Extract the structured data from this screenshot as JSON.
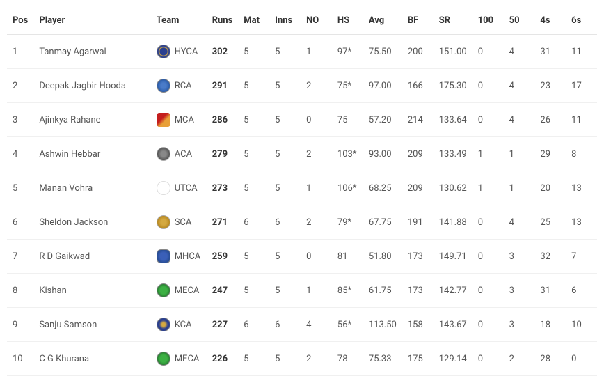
{
  "columns": [
    "Pos",
    "Player",
    "Team",
    "Runs",
    "Mat",
    "Inns",
    "NO",
    "HS",
    "Avg",
    "BF",
    "SR",
    "100",
    "50",
    "4s",
    "6s"
  ],
  "rows": [
    {
      "pos": "1",
      "player": "Tanmay Agarwal",
      "team": "HYCA",
      "logo": "hyca",
      "runs": "302",
      "mat": "5",
      "inns": "5",
      "no": "1",
      "hs": "97*",
      "avg": "75.50",
      "bf": "200",
      "sr": "151.00",
      "c100": "0",
      "c50": "4",
      "c4s": "31",
      "c6s": "11"
    },
    {
      "pos": "2",
      "player": "Deepak Jagbir Hooda",
      "team": "RCA",
      "logo": "rca",
      "runs": "291",
      "mat": "5",
      "inns": "5",
      "no": "2",
      "hs": "75*",
      "avg": "97.00",
      "bf": "166",
      "sr": "175.30",
      "c100": "0",
      "c50": "4",
      "c4s": "23",
      "c6s": "17"
    },
    {
      "pos": "3",
      "player": "Ajinkya Rahane",
      "team": "MCA",
      "logo": "mca",
      "runs": "286",
      "mat": "5",
      "inns": "5",
      "no": "0",
      "hs": "75",
      "avg": "57.20",
      "bf": "214",
      "sr": "133.64",
      "c100": "0",
      "c50": "4",
      "c4s": "26",
      "c6s": "11"
    },
    {
      "pos": "4",
      "player": "Ashwin Hebbar",
      "team": "ACA",
      "logo": "aca",
      "runs": "279",
      "mat": "5",
      "inns": "5",
      "no": "2",
      "hs": "103*",
      "avg": "93.00",
      "bf": "209",
      "sr": "133.49",
      "c100": "1",
      "c50": "1",
      "c4s": "29",
      "c6s": "8"
    },
    {
      "pos": "5",
      "player": "Manan Vohra",
      "team": "UTCA",
      "logo": "utca",
      "runs": "273",
      "mat": "5",
      "inns": "5",
      "no": "1",
      "hs": "106*",
      "avg": "68.25",
      "bf": "209",
      "sr": "130.62",
      "c100": "1",
      "c50": "1",
      "c4s": "20",
      "c6s": "13"
    },
    {
      "pos": "6",
      "player": "Sheldon Jackson",
      "team": "SCA",
      "logo": "sca",
      "runs": "271",
      "mat": "6",
      "inns": "6",
      "no": "2",
      "hs": "79*",
      "avg": "67.75",
      "bf": "191",
      "sr": "141.88",
      "c100": "0",
      "c50": "4",
      "c4s": "25",
      "c6s": "13"
    },
    {
      "pos": "7",
      "player": "R D Gaikwad",
      "team": "MHCA",
      "logo": "mhca",
      "runs": "259",
      "mat": "5",
      "inns": "5",
      "no": "0",
      "hs": "81",
      "avg": "51.80",
      "bf": "173",
      "sr": "149.71",
      "c100": "0",
      "c50": "3",
      "c4s": "32",
      "c6s": "7"
    },
    {
      "pos": "8",
      "player": "Kishan",
      "team": "MECA",
      "logo": "meca",
      "runs": "247",
      "mat": "5",
      "inns": "5",
      "no": "1",
      "hs": "85*",
      "avg": "61.75",
      "bf": "173",
      "sr": "142.77",
      "c100": "0",
      "c50": "3",
      "c4s": "31",
      "c6s": "6"
    },
    {
      "pos": "9",
      "player": "Sanju Samson",
      "team": "KCA",
      "logo": "kca",
      "runs": "227",
      "mat": "6",
      "inns": "6",
      "no": "4",
      "hs": "56*",
      "avg": "113.50",
      "bf": "158",
      "sr": "143.67",
      "c100": "0",
      "c50": "3",
      "c4s": "18",
      "c6s": "10"
    },
    {
      "pos": "10",
      "player": "C G Khurana",
      "team": "MECA",
      "logo": "meca",
      "runs": "226",
      "mat": "5",
      "inns": "5",
      "no": "2",
      "hs": "78",
      "avg": "75.33",
      "bf": "175",
      "sr": "129.14",
      "c100": "0",
      "c50": "2",
      "c4s": "28",
      "c6s": "0"
    }
  ]
}
